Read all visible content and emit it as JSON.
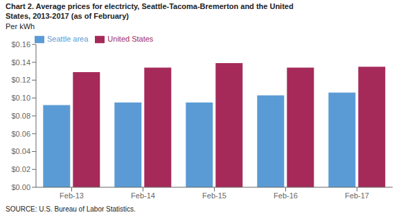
{
  "chart_data": {
    "type": "bar",
    "title": "Chart 2. Average prices for electricty, Seattle-Tacoma-Bremerton and the United",
    "subtitle": "States, 2013-2017  (as of February)",
    "ylabel": "Per kWh",
    "source": "SOURCE: U.S. Bureau of Labor Statistics.",
    "categories": [
      "Feb-13",
      "Feb-14",
      "Feb-15",
      "Feb-16",
      "Feb-17"
    ],
    "series": [
      {
        "name": "Seattle area",
        "color": "#5B9BD5",
        "values": [
          0.092,
          0.095,
          0.095,
          0.103,
          0.106
        ]
      },
      {
        "name": "United States",
        "color": "#A52A5A",
        "values": [
          0.129,
          0.134,
          0.139,
          0.134,
          0.135
        ]
      }
    ],
    "ylim": [
      0,
      0.16
    ],
    "yticks": [
      {
        "value": 0,
        "label": "$0.00"
      },
      {
        "value": 0.02,
        "label": "$0.02"
      },
      {
        "value": 0.04,
        "label": "$0.04"
      },
      {
        "value": 0.06,
        "label": "$0.06"
      },
      {
        "value": 0.08,
        "label": "$0.08"
      },
      {
        "value": 0.1,
        "label": "$0.10"
      },
      {
        "value": 0.12,
        "label": "$0.12"
      },
      {
        "value": 0.14,
        "label": "$0.14"
      },
      {
        "value": 0.16,
        "label": "$0.16"
      }
    ],
    "grid": false,
    "legend": "upper left"
  }
}
